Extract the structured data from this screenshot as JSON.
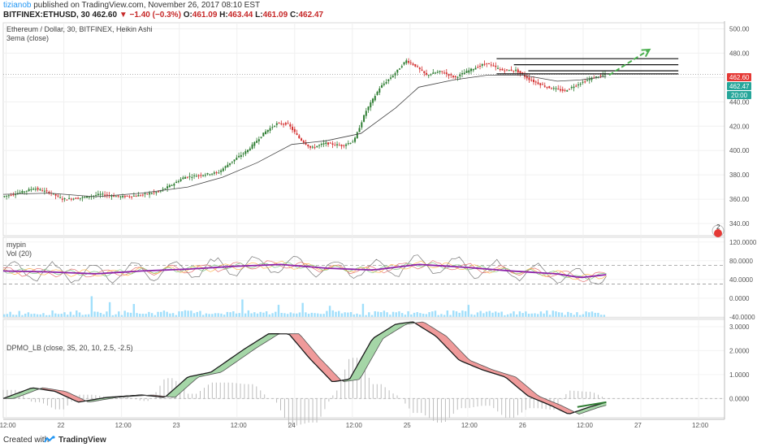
{
  "header": {
    "user": "tizianob",
    "published": "published on TradingView.com, November 26, 2017 08:10 EST",
    "symbol": "BITFINEX:ETHUSD, 30",
    "last": "462.60",
    "change": "−1.40 (−0.3%)",
    "open_label": "O:",
    "open": "461.09",
    "high_label": "H:",
    "high": "463.44",
    "low_label": "L:",
    "low": "461.09",
    "close_label": "C:",
    "close": "462.47"
  },
  "main_panel": {
    "title": "Ethereum / Dollar, 30, BITFINEX, Heikin Ashi",
    "ema_label": "3ema (close)",
    "price_badges": [
      "462.60",
      "462.47",
      "20:00"
    ],
    "price_badge_colors": [
      "#e53935",
      "#26a69a",
      "#26a69a"
    ],
    "corner_badge": "2"
  },
  "vol_panel": {
    "title": "mypin",
    "sub": "Vol (20)"
  },
  "dpmo_panel": {
    "title": "DPMO_LB (close, 35, 20, 10, 2.5, -2.5)"
  },
  "footer": {
    "created": "Created with",
    "brand": "TradingView"
  },
  "colors": {
    "bull": "#2e7d32",
    "bear": "#d32f2f",
    "ema": "#444444",
    "arrow": "#4caf50",
    "dpmo_up_fill": "#a5d6a7",
    "dpmo_down_fill": "#ef9a9a",
    "stoch_main": "#8e24aa",
    "vol_bars": "#81d4fa"
  },
  "chart_data": [
    {
      "type": "candlestick",
      "name": "Ethereum / Dollar Heikin Ashi",
      "y_ticks": [
        340,
        360,
        380,
        400,
        420,
        440,
        460,
        480,
        500
      ],
      "ylim": [
        330,
        505
      ],
      "x_ticks": [
        "12:00",
        "22",
        "12:00",
        "23",
        "12:00",
        "24",
        "12:00",
        "25",
        "12:00",
        "26",
        "12:00",
        "27",
        "12:00"
      ],
      "t_range": [
        0,
        12.5
      ],
      "price_path": [
        [
          0.0,
          362
        ],
        [
          0.35,
          366
        ],
        [
          0.55,
          369
        ],
        [
          0.85,
          365
        ],
        [
          1.05,
          360
        ],
        [
          1.35,
          361
        ],
        [
          1.7,
          364
        ],
        [
          2.05,
          362
        ],
        [
          2.35,
          363
        ],
        [
          2.7,
          366
        ],
        [
          2.95,
          372
        ],
        [
          3.15,
          378
        ],
        [
          3.45,
          380
        ],
        [
          3.75,
          382
        ],
        [
          3.95,
          390
        ],
        [
          4.25,
          400
        ],
        [
          4.55,
          415
        ],
        [
          4.75,
          422
        ],
        [
          4.95,
          422
        ],
        [
          5.15,
          410
        ],
        [
          5.35,
          402
        ],
        [
          5.6,
          406
        ],
        [
          5.9,
          404
        ],
        [
          6.1,
          408
        ],
        [
          6.3,
          432
        ],
        [
          6.55,
          452
        ],
        [
          6.8,
          463
        ],
        [
          7.0,
          474
        ],
        [
          7.15,
          470
        ],
        [
          7.35,
          462
        ],
        [
          7.6,
          465
        ],
        [
          7.85,
          460
        ],
        [
          8.1,
          466
        ],
        [
          8.4,
          472
        ],
        [
          8.65,
          466
        ],
        [
          8.9,
          466
        ],
        [
          9.15,
          458
        ],
        [
          9.45,
          452
        ],
        [
          9.75,
          449
        ],
        [
          9.95,
          454
        ],
        [
          10.25,
          460
        ],
        [
          10.45,
          462.5
        ]
      ],
      "ema_path": [
        [
          0.0,
          364
        ],
        [
          0.8,
          365
        ],
        [
          1.6,
          362
        ],
        [
          2.4,
          365
        ],
        [
          3.2,
          370
        ],
        [
          3.8,
          378
        ],
        [
          4.4,
          390
        ],
        [
          5.0,
          405
        ],
        [
          5.6,
          408
        ],
        [
          6.2,
          414
        ],
        [
          6.8,
          435
        ],
        [
          7.2,
          452
        ],
        [
          7.8,
          458
        ],
        [
          8.4,
          462
        ],
        [
          9.0,
          462
        ],
        [
          9.6,
          457
        ],
        [
          10.0,
          458
        ],
        [
          10.45,
          461
        ]
      ],
      "resistance_lines": [
        {
          "t_start": 8.55,
          "t_end": 11.7,
          "price": 475.5
        },
        {
          "t_start": 8.85,
          "t_end": 11.7,
          "price": 470.5
        },
        {
          "t_start": 9.1,
          "t_end": 11.7,
          "price": 465.5
        },
        {
          "t_start": 8.55,
          "t_end": 11.7,
          "price": 463.0
        }
      ],
      "arrow": {
        "from": [
          10.5,
          462
        ],
        "to": [
          11.2,
          483
        ]
      }
    },
    {
      "type": "line",
      "name": "mypin / Vol (20)",
      "y_ticks": [
        -40,
        0,
        40,
        80,
        120
      ],
      "ylim": [
        -42,
        130
      ],
      "dashed_levels": [
        70,
        30
      ],
      "main_path": [
        [
          0.0,
          58
        ],
        [
          0.8,
          56
        ],
        [
          1.6,
          52
        ],
        [
          2.4,
          58
        ],
        [
          3.2,
          62
        ],
        [
          4.0,
          68
        ],
        [
          4.8,
          72
        ],
        [
          5.6,
          64
        ],
        [
          6.4,
          60
        ],
        [
          7.2,
          72
        ],
        [
          8.0,
          66
        ],
        [
          8.8,
          58
        ],
        [
          9.6,
          52
        ],
        [
          10.0,
          44
        ],
        [
          10.45,
          50
        ]
      ]
    },
    {
      "type": "area",
      "name": "DPMO_LB (close, 35, 20, 10, 2.5, -2.5)",
      "y_ticks": [
        0.0,
        1.0,
        2.0,
        3.0
      ],
      "ylim": [
        -0.8,
        3.3
      ],
      "dpmo": [
        [
          0.0,
          0.0
        ],
        [
          0.5,
          0.45
        ],
        [
          0.9,
          0.3
        ],
        [
          1.3,
          -0.15
        ],
        [
          1.8,
          0.05
        ],
        [
          2.4,
          0.15
        ],
        [
          2.8,
          0.05
        ],
        [
          3.2,
          0.9
        ],
        [
          3.6,
          1.1
        ],
        [
          4.2,
          2.1
        ],
        [
          4.6,
          2.7
        ],
        [
          4.95,
          2.7
        ],
        [
          5.3,
          1.7
        ],
        [
          5.7,
          0.7
        ],
        [
          6.0,
          0.8
        ],
        [
          6.4,
          2.5
        ],
        [
          6.8,
          3.1
        ],
        [
          7.1,
          3.2
        ],
        [
          7.5,
          2.6
        ],
        [
          7.9,
          1.6
        ],
        [
          8.3,
          1.2
        ],
        [
          8.7,
          0.9
        ],
        [
          9.1,
          0.1
        ],
        [
          9.5,
          -0.3
        ],
        [
          9.8,
          -0.65
        ],
        [
          10.1,
          -0.4
        ],
        [
          10.45,
          -0.15
        ]
      ],
      "signal_offset": 0.18
    }
  ]
}
